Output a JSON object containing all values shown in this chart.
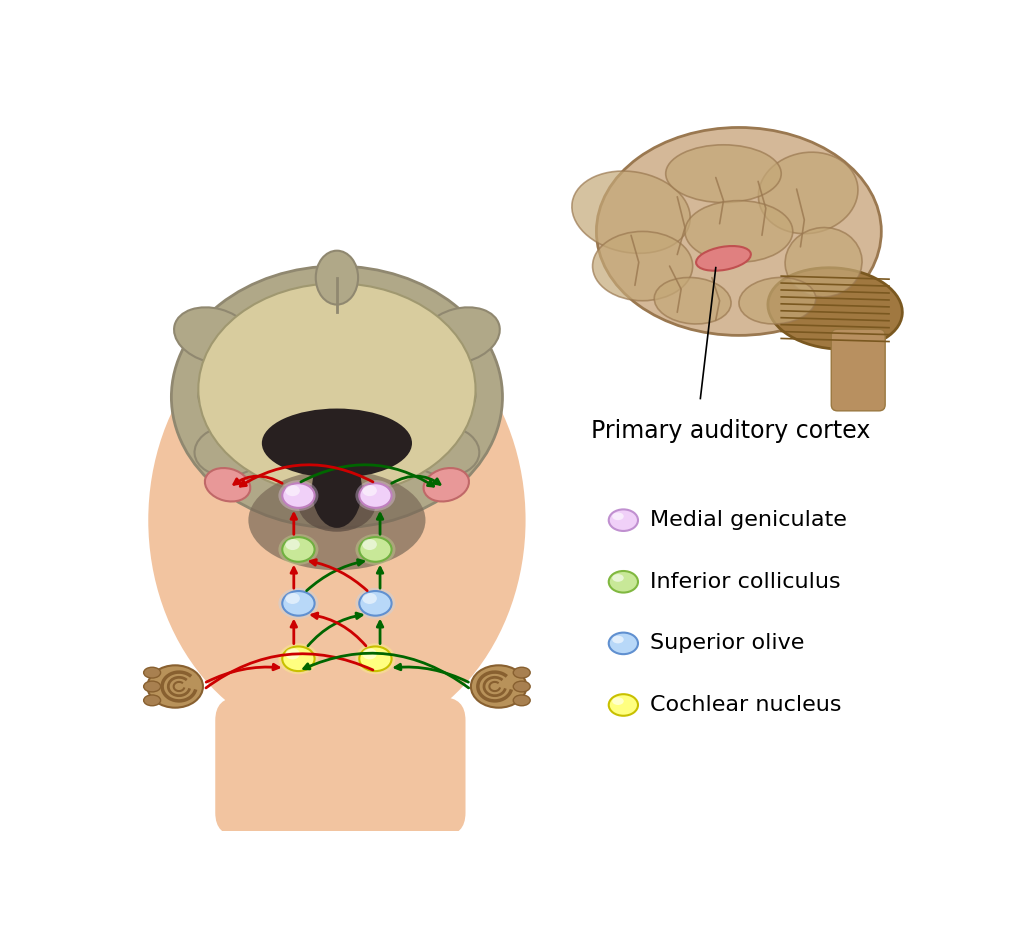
{
  "background_color": "#ffffff",
  "legend_items": [
    {
      "label": "Medial geniculate",
      "color": "#f0d0f8",
      "outline": "#c090d0"
    },
    {
      "label": "Inferior colliculus",
      "color": "#c8e898",
      "outline": "#80b840"
    },
    {
      "label": "Superior olive",
      "color": "#b8d8f8",
      "outline": "#6090d0"
    },
    {
      "label": "Cochlear nucleus",
      "color": "#ffff80",
      "outline": "#c8c000"
    }
  ],
  "head_color": "#f2c4a0",
  "head_edge": "#f2c4a0",
  "brain_gray": "#b0a888",
  "brain_tan": "#d8cc9e",
  "brain_dark": "#8a7860",
  "ventricle_color": "#282020",
  "brainstem_dark": "#7a6858",
  "pink_cortex": "#e89898",
  "pink_edge": "#c06868",
  "ear_color": "#b8925a",
  "ear_edge": "#886030",
  "red_color": "#cc0000",
  "green_color": "#006600",
  "arrow_lw": 2.0,
  "annotation_text": "Primary auditory cortex",
  "annotation_fs": 17,
  "legend_fs": 16,
  "side_brain_color": "#d4b898",
  "side_brain_edge": "#9a7850",
  "side_gyrus_color": "#c4a878",
  "cerebellum_color": "#a07840",
  "cerebellum_edge": "#7a5820"
}
